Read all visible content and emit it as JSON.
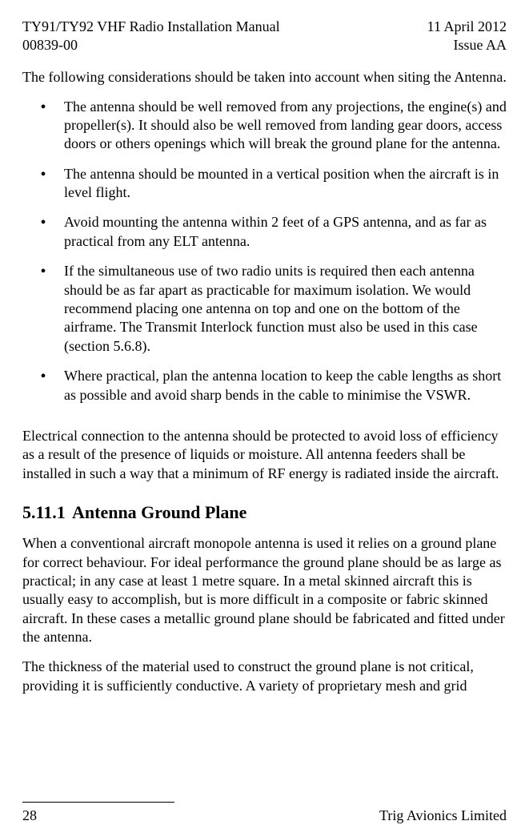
{
  "header": {
    "title_left_1": "TY91/TY92 VHF Radio Installation Manual",
    "title_left_2": "00839-00",
    "title_right_1": "11 April 2012",
    "title_right_2": "Issue AA"
  },
  "intro": "The following considerations should be taken into account when siting the Antenna.",
  "bullets": [
    "The antenna should be well removed from any projections, the engine(s) and propeller(s). It should also be well removed from landing gear doors, access doors or others openings which will break the ground plane for the antenna.",
    "The antenna should be mounted in a vertical position when the aircraft is in level flight.",
    "Avoid mounting the antenna within 2 feet of a GPS antenna, and as far as practical from any ELT antenna.",
    "If the simultaneous use of two radio units is required then each antenna should be as far apart as practicable for maximum isolation. We would recommend placing one antenna on top and one on the bottom of the airframe.  The Transmit Interlock function must also be used in this case (section 5.6.8).",
    "Where practical, plan the antenna location to keep the cable lengths as short as possible and avoid sharp bends in the cable to minimise the VSWR."
  ],
  "para_after_bullets": "Electrical connection to the antenna should be protected to avoid loss of efficiency as a result of the presence of liquids or moisture. All antenna feeders shall be installed in such a way that a minimum of RF energy is radiated inside the aircraft.",
  "section": {
    "number": "5.11.1",
    "title": "Antenna Ground Plane"
  },
  "section_paras": [
    "When a conventional aircraft monopole antenna is used it relies on a ground plane for correct behaviour.  For ideal performance the ground plane should be as large as practical; in any case at least 1 metre square.  In a metal skinned aircraft this is usually easy to accomplish, but is more difficult in a composite or fabric skinned aircraft.  In these cases a metallic ground plane should be fabricated and fitted under the antenna.",
    "The thickness of the material used to construct the ground plane is not critical, providing it is sufficiently conductive.  A variety of proprietary mesh and grid"
  ],
  "footer": {
    "page_number": "28",
    "company": "Trig Avionics Limited"
  }
}
